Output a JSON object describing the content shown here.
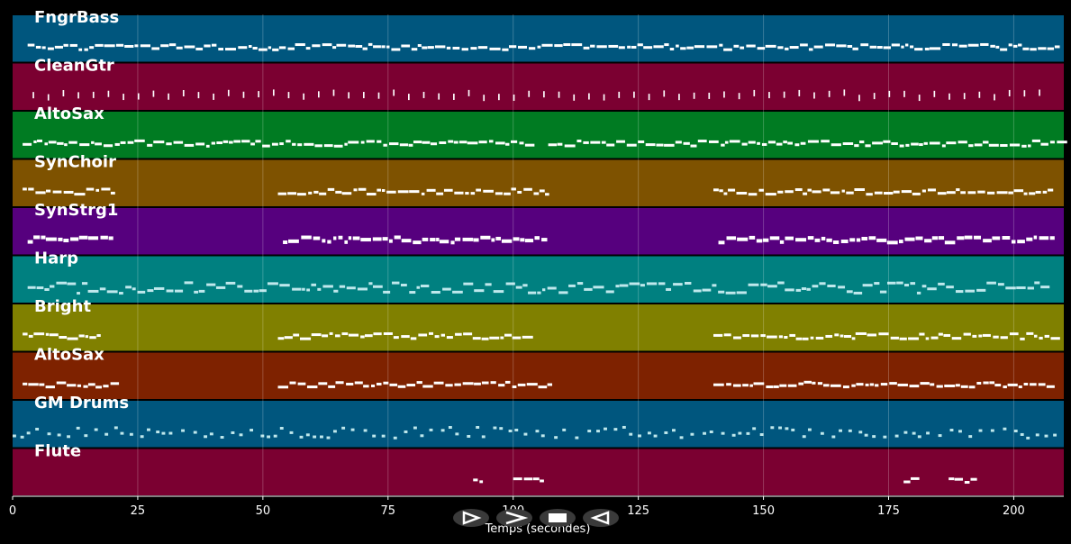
{
  "window": {
    "background": "#000000"
  },
  "tracks": [
    {
      "name": "FngrBass",
      "color": "#00567e"
    },
    {
      "name": "CleanGtr",
      "color": "#7b0031"
    },
    {
      "name": "AltoSax",
      "color": "#007b22"
    },
    {
      "name": "SynChoir",
      "color": "#7e5200"
    },
    {
      "name": "SynStrg1",
      "color": "#56007e"
    },
    {
      "name": "Harp",
      "color": "#008080"
    },
    {
      "name": "Bright",
      "color": "#808000"
    },
    {
      "name": "AltoSax",
      "color": "#7e2200"
    },
    {
      "name": "GM Drums",
      "color": "#00567e"
    },
    {
      "name": "Flute",
      "color": "#7b0031"
    }
  ],
  "axis": {
    "xlabel": "Temps (secondes)",
    "xlim": [
      0,
      210
    ],
    "ticks": [
      0,
      25,
      50,
      75,
      100,
      125,
      150,
      175,
      200
    ],
    "grid": true
  },
  "controls": [
    {
      "name": "play-button",
      "icon": "play-icon"
    },
    {
      "name": "forward-button",
      "icon": "forward-icon"
    },
    {
      "name": "stop-button",
      "icon": "stop-icon"
    },
    {
      "name": "rewind-button",
      "icon": "rewind-icon"
    }
  ]
}
